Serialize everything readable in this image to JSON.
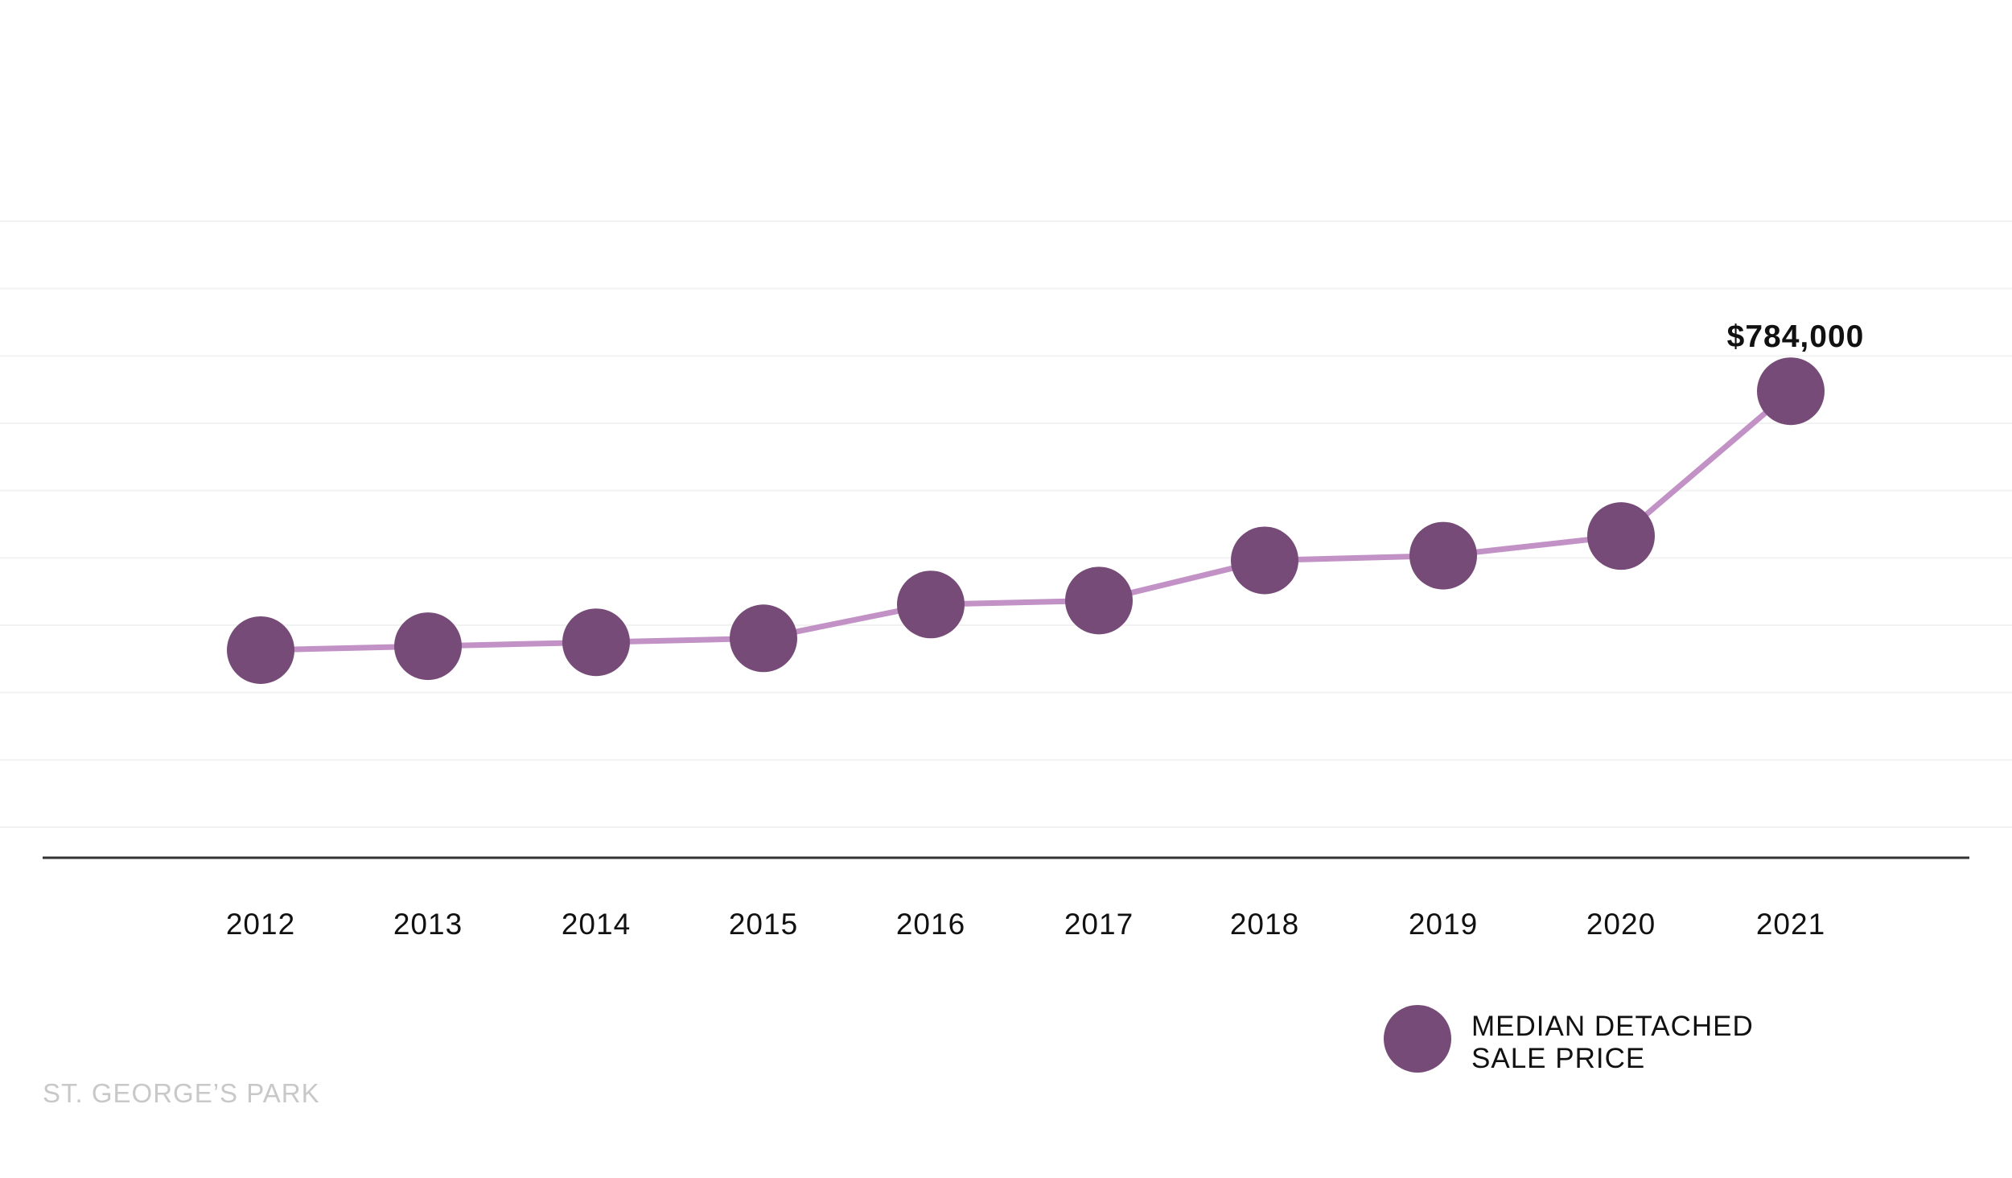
{
  "chart_data": {
    "type": "line",
    "title": "",
    "xlabel": "",
    "ylabel": "",
    "categories": [
      "2012",
      "2013",
      "2014",
      "2015",
      "2016",
      "2017",
      "2018",
      "2019",
      "2020",
      "2021"
    ],
    "series": [
      {
        "name": "MEDIAN DETACHED SALE PRICE",
        "values": [
          455000,
          460000,
          465000,
          470000,
          513000,
          518000,
          569000,
          575000,
          600000,
          784000
        ]
      }
    ],
    "ylim": [
      230000,
      1000000
    ],
    "grid": true,
    "legend_position": "bottom-right",
    "data_labels": [
      {
        "category": "2021",
        "text": "$784,000"
      }
    ],
    "colors": {
      "marker": "#764b77",
      "line": "#c291c5",
      "gridline": "#f2f2f2",
      "axis": "#333333",
      "watermark": "#c8c8c8"
    }
  },
  "legend": {
    "lines": [
      "MEDIAN DETACHED",
      "SALE PRICE"
    ]
  },
  "watermark": {
    "text": "ST. GEORGE’S PARK"
  }
}
